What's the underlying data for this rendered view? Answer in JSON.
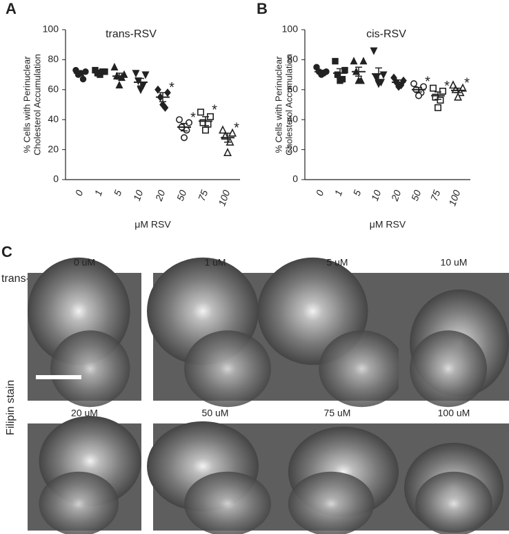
{
  "panel_labels": [
    "A",
    "B",
    "C"
  ],
  "chart_data": [
    {
      "type": "dotplot",
      "title": "trans-RSV",
      "xlabel": "μM RSV",
      "ylabel": [
        "% Cells with Perinuclear",
        "Cholesterol Accumulation"
      ],
      "categories": [
        "0",
        "1",
        "5",
        "10",
        "20",
        "50",
        "75",
        "100"
      ],
      "markers": [
        "circle",
        "square",
        "triangle",
        "triangle-down",
        "diamond",
        "circle-open",
        "square-open",
        "triangle-open"
      ],
      "color": "#222222",
      "points": [
        [
          73,
          72,
          70,
          67,
          71
        ],
        [
          73,
          72,
          71,
          72,
          70
        ],
        [
          75,
          70,
          69,
          68,
          63
        ],
        [
          71,
          70,
          66,
          63,
          60
        ],
        [
          60,
          58,
          55,
          48,
          50
        ],
        [
          40,
          38,
          35,
          33,
          28
        ],
        [
          45,
          42,
          38,
          37,
          33
        ],
        [
          33,
          31,
          29,
          25,
          18
        ]
      ],
      "means": [
        71,
        72,
        69,
        65,
        55,
        35,
        39,
        28
      ],
      "sem": [
        1.5,
        1,
        2,
        2.5,
        3,
        2.5,
        3,
        3
      ],
      "stars": [
        null,
        null,
        null,
        null,
        "*",
        "*",
        "*",
        "*"
      ],
      "ylim": [
        0,
        100
      ],
      "yticks": [
        0,
        20,
        40,
        60,
        80,
        100
      ]
    },
    {
      "type": "dotplot",
      "title": "cis-RSV",
      "xlabel": "μM RSV",
      "ylabel": [
        "% Cells with Perinuclear",
        "Cholesterol Accumulation"
      ],
      "categories": [
        "0",
        "1",
        "5",
        "10",
        "20",
        "50",
        "75",
        "100"
      ],
      "markers": [
        "circle",
        "square",
        "triangle",
        "triangle-down",
        "diamond",
        "circle-open",
        "square-open",
        "triangle-open"
      ],
      "color": "#222222",
      "points": [
        [
          75,
          72,
          72,
          71,
          70
        ],
        [
          79,
          73,
          70,
          67,
          66
        ],
        [
          79,
          79,
          72,
          66,
          66
        ],
        [
          86,
          70,
          68,
          65,
          64
        ],
        [
          68,
          66,
          65,
          63,
          62
        ],
        [
          64,
          62,
          60,
          58,
          56
        ],
        [
          61,
          59,
          55,
          53,
          48
        ],
        [
          63,
          61,
          60,
          58,
          55
        ]
      ],
      "means": [
        72,
        71,
        72,
        70.5,
        65,
        60,
        56,
        59.5
      ],
      "sem": [
        1,
        3,
        3,
        4,
        1.5,
        1.5,
        2.5,
        1.5
      ],
      "stars": [
        null,
        null,
        null,
        null,
        null,
        "*",
        "*",
        "*"
      ],
      "ylim": [
        0,
        100
      ],
      "yticks": [
        0,
        20,
        40,
        60,
        80,
        100
      ]
    }
  ],
  "panel_c": {
    "row_label": "trans-RSV",
    "side_label": "Filipin stain",
    "images": [
      "0 uM",
      "1 uM",
      "5 uM",
      "10 uM",
      "20 uM",
      "50 uM",
      "75 uM",
      "100 uM"
    ]
  }
}
